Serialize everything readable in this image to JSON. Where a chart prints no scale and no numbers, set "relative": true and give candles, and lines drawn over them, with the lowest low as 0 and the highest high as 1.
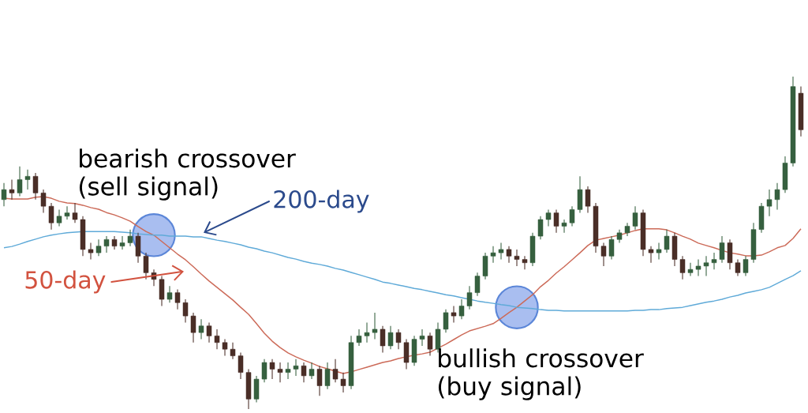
{
  "chart_data": {
    "type": "candlestick",
    "relative": true,
    "categories": [
      null,
      null,
      null,
      null,
      null,
      null,
      null,
      null,
      null,
      null,
      null,
      null,
      null,
      null,
      null,
      null,
      null,
      null,
      null,
      null,
      null,
      null,
      null,
      null,
      null,
      null,
      null,
      null,
      null,
      null,
      null,
      null,
      null,
      null,
      null,
      null,
      null,
      null,
      null,
      null,
      null,
      null,
      null,
      null,
      null,
      null,
      null,
      null,
      null,
      null,
      null,
      null,
      null,
      null,
      null,
      null,
      null,
      null,
      null,
      null,
      null,
      null,
      null,
      null,
      null,
      null,
      null,
      null,
      null,
      null,
      null,
      null,
      null,
      null,
      null,
      null,
      null,
      null,
      null,
      null,
      null,
      null,
      null,
      null,
      null,
      null,
      null,
      null,
      null,
      null,
      null,
      null,
      null,
      null,
      null,
      null,
      null,
      null,
      null,
      null,
      null,
      null
    ],
    "ohlc": [
      [
        0.63,
        0.68,
        0.61,
        0.66
      ],
      [
        0.66,
        0.69,
        0.63,
        0.65
      ],
      [
        0.65,
        0.73,
        0.64,
        0.69
      ],
      [
        0.69,
        0.72,
        0.66,
        0.7
      ],
      [
        0.7,
        0.71,
        0.63,
        0.65
      ],
      [
        0.65,
        0.66,
        0.59,
        0.61
      ],
      [
        0.61,
        0.62,
        0.54,
        0.56
      ],
      [
        0.56,
        0.6,
        0.55,
        0.58
      ],
      [
        0.58,
        0.61,
        0.57,
        0.59
      ],
      [
        0.59,
        0.62,
        0.56,
        0.57
      ],
      [
        0.57,
        0.58,
        0.46,
        0.48
      ],
      [
        0.48,
        0.5,
        0.45,
        0.47
      ],
      [
        0.47,
        0.51,
        0.46,
        0.49
      ],
      [
        0.49,
        0.52,
        0.47,
        0.51
      ],
      [
        0.51,
        0.52,
        0.48,
        0.49
      ],
      [
        0.49,
        0.52,
        0.48,
        0.5
      ],
      [
        0.5,
        0.54,
        0.49,
        0.52
      ],
      [
        0.52,
        0.53,
        0.44,
        0.46
      ],
      [
        0.46,
        0.47,
        0.39,
        0.41
      ],
      [
        0.41,
        0.42,
        0.37,
        0.39
      ],
      [
        0.39,
        0.4,
        0.31,
        0.33
      ],
      [
        0.33,
        0.37,
        0.32,
        0.35
      ],
      [
        0.35,
        0.36,
        0.3,
        0.32
      ],
      [
        0.32,
        0.33,
        0.26,
        0.28
      ],
      [
        0.28,
        0.29,
        0.2,
        0.23
      ],
      [
        0.23,
        0.27,
        0.21,
        0.25
      ],
      [
        0.25,
        0.26,
        0.2,
        0.22
      ],
      [
        0.22,
        0.24,
        0.18,
        0.2
      ],
      [
        0.2,
        0.21,
        0.16,
        0.18
      ],
      [
        0.18,
        0.2,
        0.15,
        0.16
      ],
      [
        0.16,
        0.17,
        0.09,
        0.11
      ],
      [
        0.11,
        0.12,
        0.0,
        0.03
      ],
      [
        0.03,
        0.1,
        0.02,
        0.09
      ],
      [
        0.09,
        0.15,
        0.08,
        0.14
      ],
      [
        0.14,
        0.15,
        0.09,
        0.12
      ],
      [
        0.12,
        0.14,
        0.08,
        0.11
      ],
      [
        0.11,
        0.14,
        0.09,
        0.12
      ],
      [
        0.12,
        0.15,
        0.1,
        0.13
      ],
      [
        0.13,
        0.14,
        0.08,
        0.1
      ],
      [
        0.1,
        0.14,
        0.09,
        0.12
      ],
      [
        0.12,
        0.13,
        0.04,
        0.07
      ],
      [
        0.07,
        0.14,
        0.06,
        0.12
      ],
      [
        0.12,
        0.15,
        0.08,
        0.09
      ],
      [
        0.09,
        0.11,
        0.05,
        0.07
      ],
      [
        0.07,
        0.22,
        0.06,
        0.2
      ],
      [
        0.2,
        0.24,
        0.19,
        0.22
      ],
      [
        0.22,
        0.26,
        0.2,
        0.23
      ],
      [
        0.23,
        0.29,
        0.21,
        0.24
      ],
      [
        0.24,
        0.25,
        0.17,
        0.19
      ],
      [
        0.19,
        0.25,
        0.18,
        0.23
      ],
      [
        0.23,
        0.24,
        0.18,
        0.2
      ],
      [
        0.2,
        0.21,
        0.12,
        0.14
      ],
      [
        0.14,
        0.22,
        0.13,
        0.21
      ],
      [
        0.21,
        0.24,
        0.19,
        0.22
      ],
      [
        0.22,
        0.23,
        0.16,
        0.18
      ],
      [
        0.18,
        0.26,
        0.17,
        0.24
      ],
      [
        0.24,
        0.3,
        0.23,
        0.29
      ],
      [
        0.29,
        0.31,
        0.26,
        0.28
      ],
      [
        0.28,
        0.33,
        0.27,
        0.31
      ],
      [
        0.31,
        0.37,
        0.3,
        0.35
      ],
      [
        0.35,
        0.41,
        0.34,
        0.4
      ],
      [
        0.4,
        0.47,
        0.39,
        0.46
      ],
      [
        0.46,
        0.49,
        0.44,
        0.47
      ],
      [
        0.47,
        0.5,
        0.45,
        0.48
      ],
      [
        0.48,
        0.49,
        0.44,
        0.46
      ],
      [
        0.46,
        0.48,
        0.43,
        0.45
      ],
      [
        0.45,
        0.46,
        0.42,
        0.44
      ],
      [
        0.44,
        0.53,
        0.43,
        0.52
      ],
      [
        0.52,
        0.58,
        0.51,
        0.57
      ],
      [
        0.57,
        0.6,
        0.55,
        0.59
      ],
      [
        0.59,
        0.6,
        0.53,
        0.55
      ],
      [
        0.55,
        0.57,
        0.53,
        0.56
      ],
      [
        0.56,
        0.61,
        0.55,
        0.6
      ],
      [
        0.6,
        0.7,
        0.59,
        0.66
      ],
      [
        0.66,
        0.67,
        0.59,
        0.61
      ],
      [
        0.61,
        0.62,
        0.47,
        0.49
      ],
      [
        0.49,
        0.5,
        0.43,
        0.46
      ],
      [
        0.46,
        0.52,
        0.45,
        0.51
      ],
      [
        0.51,
        0.54,
        0.5,
        0.53
      ],
      [
        0.53,
        0.56,
        0.52,
        0.55
      ],
      [
        0.55,
        0.61,
        0.54,
        0.59
      ],
      [
        0.59,
        0.6,
        0.46,
        0.48
      ],
      [
        0.48,
        0.49,
        0.44,
        0.47
      ],
      [
        0.47,
        0.5,
        0.45,
        0.48
      ],
      [
        0.48,
        0.54,
        0.47,
        0.52
      ],
      [
        0.52,
        0.53,
        0.43,
        0.45
      ],
      [
        0.45,
        0.46,
        0.39,
        0.41
      ],
      [
        0.41,
        0.44,
        0.4,
        0.42
      ],
      [
        0.42,
        0.45,
        0.4,
        0.43
      ],
      [
        0.43,
        0.46,
        0.4,
        0.44
      ],
      [
        0.44,
        0.47,
        0.42,
        0.45
      ],
      [
        0.45,
        0.52,
        0.44,
        0.5
      ],
      [
        0.5,
        0.51,
        0.42,
        0.44
      ],
      [
        0.44,
        0.45,
        0.4,
        0.41
      ],
      [
        0.41,
        0.46,
        0.4,
        0.45
      ],
      [
        0.45,
        0.56,
        0.44,
        0.54
      ],
      [
        0.54,
        0.62,
        0.53,
        0.61
      ],
      [
        0.61,
        0.66,
        0.58,
        0.63
      ],
      [
        0.63,
        0.68,
        0.6,
        0.66
      ],
      [
        0.66,
        0.76,
        0.65,
        0.74
      ],
      [
        0.74,
        1.0,
        0.73,
        0.97
      ],
      [
        0.95,
        0.97,
        0.82,
        0.84
      ]
    ],
    "colors": [
      "#36603f",
      "#4a2e27",
      "#36603f",
      "#36603f",
      "#4a2e27",
      "#4a2e27",
      "#4a2e27",
      "#36603f",
      "#36603f",
      "#4a2e27",
      "#4a2e27",
      "#4a2e27",
      "#36603f",
      "#36603f",
      "#4a2e27",
      "#36603f",
      "#36603f",
      "#4a2e27",
      "#4a2e27",
      "#4a2e27",
      "#4a2e27",
      "#36603f",
      "#4a2e27",
      "#4a2e27",
      "#4a2e27",
      "#36603f",
      "#4a2e27",
      "#4a2e27",
      "#4a2e27",
      "#4a2e27",
      "#4a2e27",
      "#4a2e27",
      "#36603f",
      "#36603f",
      "#4a2e27",
      "#4a2e27",
      "#36603f",
      "#36603f",
      "#4a2e27",
      "#36603f",
      "#4a2e27",
      "#36603f",
      "#4a2e27",
      "#4a2e27",
      "#36603f",
      "#36603f",
      "#36603f",
      "#36603f",
      "#4a2e27",
      "#36603f",
      "#4a2e27",
      "#4a2e27",
      "#36603f",
      "#36603f",
      "#4a2e27",
      "#36603f",
      "#36603f",
      "#4a2e27",
      "#36603f",
      "#36603f",
      "#36603f",
      "#36603f",
      "#36603f",
      "#36603f",
      "#4a2e27",
      "#4a2e27",
      "#4a2e27",
      "#36603f",
      "#36603f",
      "#36603f",
      "#4a2e27",
      "#36603f",
      "#36603f",
      "#36603f",
      "#4a2e27",
      "#4a2e27",
      "#4a2e27",
      "#36603f",
      "#36603f",
      "#36603f",
      "#36603f",
      "#4a2e27",
      "#4a2e27",
      "#36603f",
      "#36603f",
      "#4a2e27",
      "#4a2e27",
      "#36603f",
      "#36603f",
      "#36603f",
      "#36603f",
      "#36603f",
      "#4a2e27",
      "#4a2e27",
      "#36603f",
      "#36603f",
      "#36603f",
      "#36603f",
      "#36603f",
      "#36603f",
      "#36603f",
      "#4a2e27"
    ],
    "series": [
      {
        "type": "line",
        "name": "50-day",
        "color": "#cc6a58",
        "values": [
          0.634,
          0.632,
          0.632,
          0.632,
          0.637,
          0.639,
          0.634,
          0.625,
          0.62,
          0.618,
          0.613,
          0.606,
          0.601,
          0.591,
          0.584,
          0.575,
          0.565,
          0.549,
          0.534,
          0.523,
          0.504,
          0.485,
          0.466,
          0.449,
          0.428,
          0.406,
          0.385,
          0.366,
          0.347,
          0.328,
          0.306,
          0.285,
          0.257,
          0.228,
          0.204,
          0.185,
          0.169,
          0.157,
          0.147,
          0.138,
          0.128,
          0.121,
          0.114,
          0.107,
          0.112,
          0.119,
          0.126,
          0.133,
          0.14,
          0.145,
          0.152,
          0.157,
          0.162,
          0.166,
          0.171,
          0.183,
          0.195,
          0.209,
          0.223,
          0.235,
          0.242,
          0.249,
          0.257,
          0.273,
          0.29,
          0.306,
          0.325,
          0.344,
          0.368,
          0.387,
          0.409,
          0.428,
          0.449,
          0.47,
          0.492,
          0.508,
          0.513,
          0.518,
          0.523,
          0.53,
          0.537,
          0.542,
          0.542,
          0.542,
          0.539,
          0.53,
          0.52,
          0.511,
          0.499,
          0.492,
          0.485,
          0.477,
          0.47,
          0.466,
          0.461,
          0.461,
          0.463,
          0.473,
          0.485,
          0.492,
          0.513,
          0.542
        ]
      },
      {
        "type": "line",
        "name": "200-day",
        "color": "#5faad8",
        "values": [
          0.485,
          0.489,
          0.496,
          0.504,
          0.511,
          0.518,
          0.523,
          0.527,
          0.53,
          0.532,
          0.534,
          0.534,
          0.534,
          0.534,
          0.534,
          0.532,
          0.53,
          0.527,
          0.525,
          0.523,
          0.523,
          0.52,
          0.52,
          0.52,
          0.518,
          0.518,
          0.513,
          0.508,
          0.504,
          0.499,
          0.494,
          0.487,
          0.482,
          0.475,
          0.47,
          0.463,
          0.456,
          0.451,
          0.444,
          0.439,
          0.435,
          0.43,
          0.423,
          0.418,
          0.411,
          0.404,
          0.397,
          0.39,
          0.382,
          0.378,
          0.373,
          0.368,
          0.363,
          0.359,
          0.354,
          0.349,
          0.344,
          0.34,
          0.335,
          0.33,
          0.325,
          0.321,
          0.318,
          0.314,
          0.311,
          0.306,
          0.304,
          0.302,
          0.299,
          0.297,
          0.297,
          0.295,
          0.295,
          0.295,
          0.295,
          0.295,
          0.295,
          0.295,
          0.295,
          0.295,
          0.297,
          0.297,
          0.299,
          0.299,
          0.302,
          0.304,
          0.306,
          0.311,
          0.316,
          0.321,
          0.325,
          0.33,
          0.337,
          0.342,
          0.349,
          0.354,
          0.359,
          0.366,
          0.378,
          0.39,
          0.401,
          0.416
        ]
      },
      {
        "type": "scatter",
        "color": "#a9bef0",
        "marker": "circle",
        "values": [
          null,
          null,
          null,
          null,
          null,
          null,
          null,
          null,
          null,
          null,
          null,
          null,
          null,
          null,
          null,
          null,
          null,
          null,
          null,
          0.523,
          null,
          null,
          null,
          null,
          null,
          null,
          null,
          null,
          null,
          null,
          null,
          null,
          null,
          null,
          null,
          null,
          null,
          null,
          null,
          null,
          null,
          null,
          null,
          null,
          null,
          null,
          null,
          null,
          null,
          null,
          null,
          null,
          null,
          null,
          null,
          null,
          null,
          null,
          null,
          null,
          null,
          null,
          null,
          null,
          null,
          0.306,
          null,
          null,
          null,
          null,
          null,
          null,
          null,
          null,
          null,
          null,
          null,
          null,
          null,
          null,
          null,
          null,
          null,
          null,
          null,
          null,
          null,
          null,
          null,
          null,
          null,
          null,
          null,
          null,
          null,
          null,
          null,
          null,
          null,
          null,
          null,
          null
        ]
      }
    ],
    "annotations": [
      "bearish crossover (sell signal)",
      "bullish crossover (buy signal)"
    ]
  }
}
